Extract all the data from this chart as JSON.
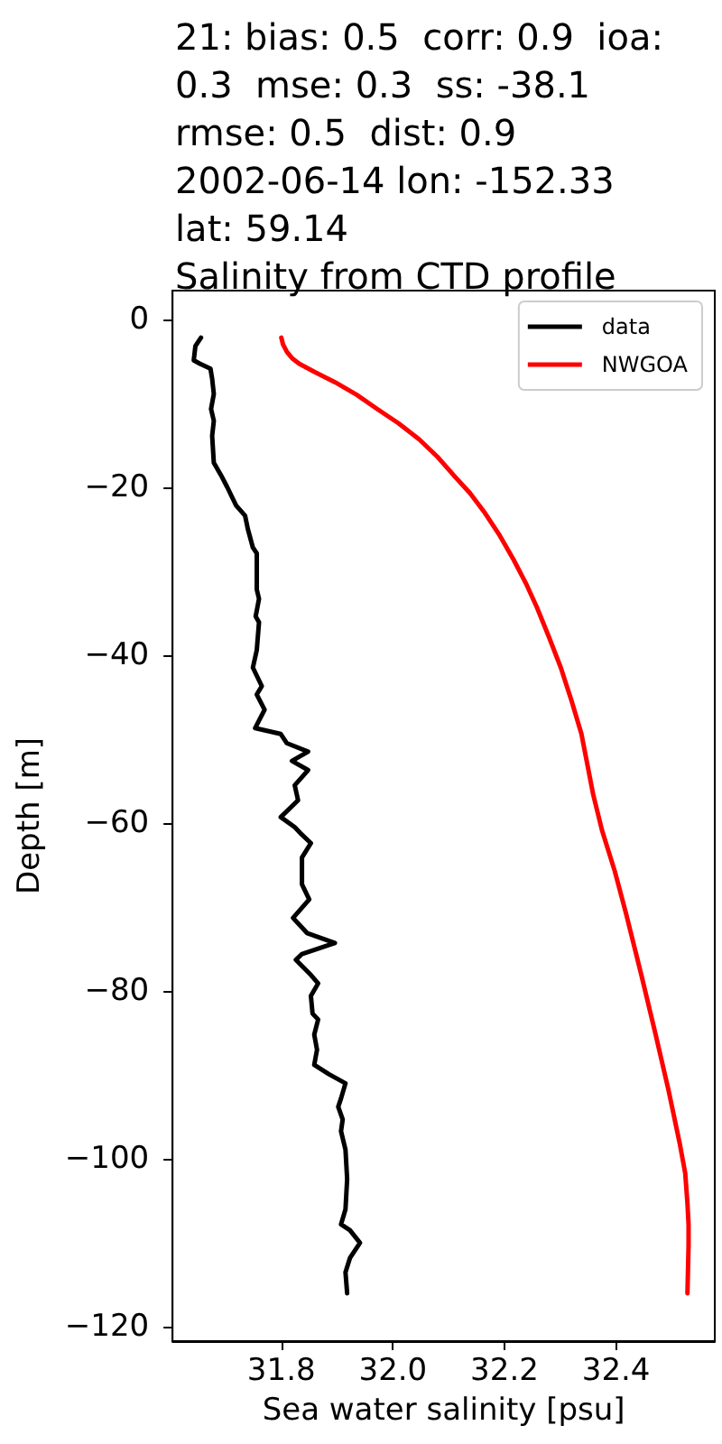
{
  "chart_data": {
    "type": "line",
    "title": "21: bias: 0.5  corr: 0.9  ioa:\n0.3  mse: 0.3  ss: -38.1\nrmse: 0.5  dist: 0.9\n2002-06-14 lon: -152.33\nlat: 59.14\nSalinity from CTD profile",
    "xlabel": "Sea water salinity [psu]",
    "ylabel": "Depth [m]",
    "xlim": [
      31.605,
      32.577
    ],
    "ylim": [
      -121.7,
      3.4
    ],
    "xticks": [
      31.8,
      {
        "value": 32,
        "label": "32.0"
      },
      32.2,
      32.4
    ],
    "yticks": [
      0,
      {
        "value": -20,
        "label": "−20"
      },
      {
        "value": -40,
        "label": "−40"
      },
      {
        "value": -60,
        "label": "−60"
      },
      {
        "value": -80,
        "label": "−80"
      },
      {
        "value": -100,
        "label": "−100"
      },
      {
        "value": -120,
        "label": "−120"
      }
    ],
    "grid": false,
    "legend": "top right",
    "series": [
      {
        "name": "data",
        "color": "#000000",
        "x": [
          31.656,
          31.646,
          31.643,
          31.654,
          31.673,
          31.676,
          31.679,
          31.674,
          31.679,
          31.676,
          31.679,
          31.692,
          31.703,
          31.719,
          31.735,
          31.74,
          31.749,
          31.756,
          31.756,
          31.76,
          31.754,
          31.76,
          31.756,
          31.749,
          31.765,
          31.756,
          31.77,
          31.753,
          31.799,
          31.81,
          31.848,
          31.819,
          31.848,
          31.824,
          31.83,
          31.799,
          31.824,
          31.834,
          31.853,
          31.837,
          31.837,
          31.85,
          31.821,
          31.846,
          31.896,
          31.837,
          31.826,
          31.853,
          31.866,
          31.853,
          31.856,
          31.866,
          31.859,
          31.864,
          31.859,
          31.885,
          31.915,
          31.907,
          31.902,
          31.91,
          31.907,
          31.915,
          31.918,
          31.915,
          31.907,
          31.923,
          31.941,
          31.923,
          31.915,
          31.918
        ],
        "values": [
          -2.2,
          -3.2,
          -4.9,
          -5.3,
          -5.9,
          -7.1,
          -8.9,
          -10.7,
          -12.1,
          -13.9,
          -17.1,
          -18.6,
          -20.0,
          -22.2,
          -23.4,
          -25.0,
          -27.2,
          -27.9,
          -32.2,
          -33.3,
          -35.4,
          -36.1,
          -39.4,
          -41.5,
          -43.7,
          -44.7,
          -46.5,
          -48.7,
          -49.4,
          -50.5,
          -51.5,
          -52.6,
          -53.7,
          -55.5,
          -57.3,
          -59.3,
          -60.5,
          -61.2,
          -62.4,
          -64.1,
          -67.3,
          -69.1,
          -71.3,
          -73.1,
          -74.3,
          -75.6,
          -76.3,
          -78.1,
          -79.1,
          -80.6,
          -82.7,
          -83.4,
          -85.2,
          -87.0,
          -88.8,
          -89.9,
          -91.0,
          -92.8,
          -93.8,
          -95.3,
          -96.7,
          -98.9,
          -102.4,
          -106.0,
          -107.8,
          -108.5,
          -110.0,
          -111.8,
          -113.5,
          -116.0
        ]
      },
      {
        "name": "NWGOA",
        "color": "#ff0000",
        "x": [
          31.8,
          31.803,
          31.81,
          31.82,
          31.832,
          31.86,
          31.896,
          31.935,
          31.972,
          32.01,
          32.047,
          32.08,
          32.109,
          32.138,
          32.163,
          32.19,
          32.216,
          32.238,
          32.258,
          32.28,
          32.301,
          32.32,
          32.338,
          32.359,
          32.375,
          32.398,
          32.418,
          32.445,
          32.471,
          32.494,
          32.514,
          32.524,
          32.528,
          32.53,
          32.53,
          32.528
        ],
        "values": [
          -2.2,
          -3.0,
          -3.9,
          -4.7,
          -5.3,
          -6.3,
          -7.5,
          -9.0,
          -10.7,
          -12.4,
          -14.3,
          -16.4,
          -18.6,
          -20.7,
          -22.9,
          -25.6,
          -28.6,
          -31.4,
          -34.3,
          -37.9,
          -41.5,
          -45.4,
          -49.4,
          -56.6,
          -60.9,
          -65.8,
          -70.8,
          -78.0,
          -85.2,
          -91.8,
          -98.1,
          -101.7,
          -105.3,
          -107.8,
          -110.3,
          -116.0
        ]
      }
    ]
  }
}
